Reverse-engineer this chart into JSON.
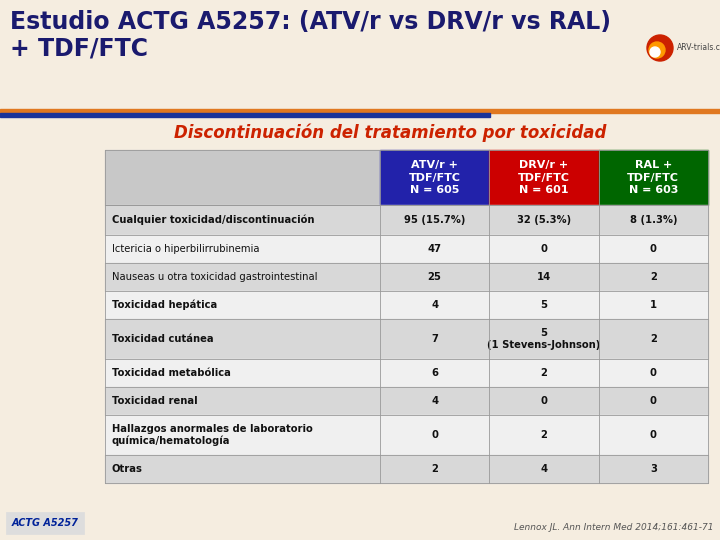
{
  "title_line1": "Estudio ACTG A5257: (ATV/r vs DRV/r vs RAL)",
  "title_line2": "+ TDF/FTC",
  "subtitle": "Discontinuación del tratamiento por toxicidad",
  "subtitle_color": "#cc2200",
  "bg_color": "#f5ede0",
  "title_bg": "#f5ede0",
  "col_headers": [
    {
      "label": "ATV/r +\nTDF/FTC\nN = 605",
      "bg": "#2222aa",
      "fg": "#ffffff"
    },
    {
      "label": "DRV/r +\nTDF/FTC\nN = 601",
      "bg": "#cc0000",
      "fg": "#ffffff"
    },
    {
      "label": "RAL +\nTDF/FTC\nN = 603",
      "bg": "#006600",
      "fg": "#ffffff"
    }
  ],
  "rows": [
    {
      "label": "Cualquier toxicidad/discontinuación",
      "values": [
        "95 (15.7%)",
        "32 (5.3%)",
        "8 (1.3%)"
      ],
      "bold_label": true,
      "bold_vals": false
    },
    {
      "label": "Ictericia o hiperbilirrubinemia",
      "values": [
        "47",
        "0",
        "0"
      ],
      "bold_label": false,
      "bold_vals": false
    },
    {
      "label": "Nauseas u otra toxicidad gastrointestinal",
      "values": [
        "25",
        "14",
        "2"
      ],
      "bold_label": false,
      "bold_vals": false
    },
    {
      "label": "Toxicidad hepática",
      "values": [
        "4",
        "5",
        "1"
      ],
      "bold_label": true,
      "bold_vals": false
    },
    {
      "label": "Toxicidad cutánea",
      "values": [
        "7",
        "5\n(1 Stevens-Johnson)",
        "2"
      ],
      "bold_label": true,
      "bold_vals": false
    },
    {
      "label": "Toxicidad metabólica",
      "values": [
        "6",
        "2",
        "0"
      ],
      "bold_label": true,
      "bold_vals": false
    },
    {
      "label": "Toxicidad renal",
      "values": [
        "4",
        "0",
        "0"
      ],
      "bold_label": true,
      "bold_vals": false
    },
    {
      "label": "Hallazgos anormales de laboratorio\nquímica/hematología",
      "values": [
        "0",
        "2",
        "0"
      ],
      "bold_label": true,
      "bold_vals": false
    },
    {
      "label": "Otras",
      "values": [
        "2",
        "4",
        "3"
      ],
      "bold_label": true,
      "bold_vals": false
    }
  ],
  "footer_left": "ACTG A5257",
  "footer_right": "Lennox JL. Ann Intern Med 2014;161:461-71",
  "stripe_colors": [
    "#d8d8d8",
    "#f0f0f0"
  ],
  "label_col_bg": "#c8c8c8",
  "grid_color": "#999999",
  "orange_line": "#e07820",
  "blue_line": "#1a3399",
  "title_color": "#1a1a6e"
}
